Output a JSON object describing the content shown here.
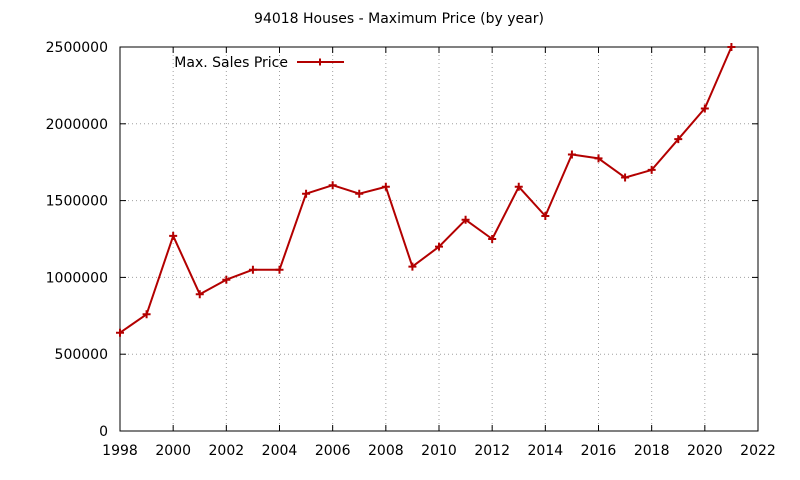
{
  "chart_data": {
    "type": "line",
    "title": "94018 Houses - Maximum Price (by year)",
    "xlabel": "",
    "ylabel": "",
    "xlim": [
      1998,
      2022
    ],
    "ylim": [
      0,
      2500000
    ],
    "x_ticks": [
      "1998",
      "2000",
      "2002",
      "2004",
      "2006",
      "2008",
      "2010",
      "2012",
      "2014",
      "2016",
      "2018",
      "2020",
      "2022"
    ],
    "x_tick_values": [
      1998,
      2000,
      2002,
      2004,
      2006,
      2008,
      2010,
      2012,
      2014,
      2016,
      2018,
      2020,
      2022
    ],
    "y_ticks": [
      "0",
      "500000",
      "1000000",
      "1500000",
      "2000000",
      "2500000"
    ],
    "y_tick_values": [
      0,
      500000,
      1000000,
      1500000,
      2000000,
      2500000
    ],
    "grid": true,
    "legend_position": "top-left",
    "series": [
      {
        "name": "Max. Sales Price",
        "color": "#b30000",
        "marker": "plus",
        "x": [
          1998,
          1999,
          2000,
          2001,
          2002,
          2003,
          2004,
          2005,
          2006,
          2007,
          2008,
          2009,
          2010,
          2011,
          2012,
          2013,
          2014,
          2015,
          2016,
          2017,
          2018,
          2019,
          2020,
          2021
        ],
        "y": [
          640000,
          760000,
          1270000,
          890000,
          985000,
          1050000,
          1050000,
          1545000,
          1600000,
          1545000,
          1590000,
          1070000,
          1200000,
          1375000,
          1250000,
          1590000,
          1400000,
          1800000,
          1775000,
          1650000,
          1700000,
          1900000,
          2100000,
          2500000
        ]
      }
    ]
  }
}
